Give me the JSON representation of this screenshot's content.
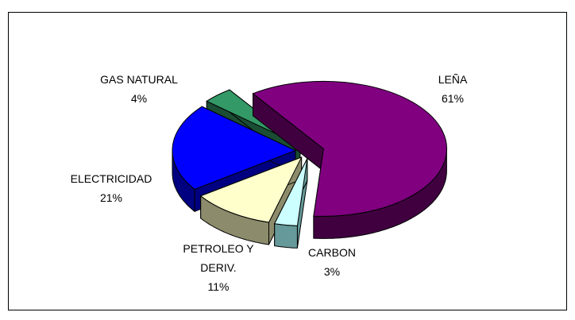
{
  "chart_data": {
    "type": "pie3d",
    "categories": [
      "LEÑA",
      "CARBON",
      "PETROLEO Y DERIV.",
      "ELECTRICIDAD",
      "GAS NATURAL"
    ],
    "values": [
      61,
      3,
      11,
      21,
      4
    ],
    "value_labels": [
      "61%",
      "3%",
      "11%",
      "21%",
      "4%"
    ],
    "colors": [
      "#800080",
      "#ccffff",
      "#ffffcc",
      "#0000ff",
      "#339966"
    ],
    "side_colors": [
      "#400040",
      "#669999",
      "#8c8c6c",
      "#000080",
      "#1a4d33"
    ]
  }
}
